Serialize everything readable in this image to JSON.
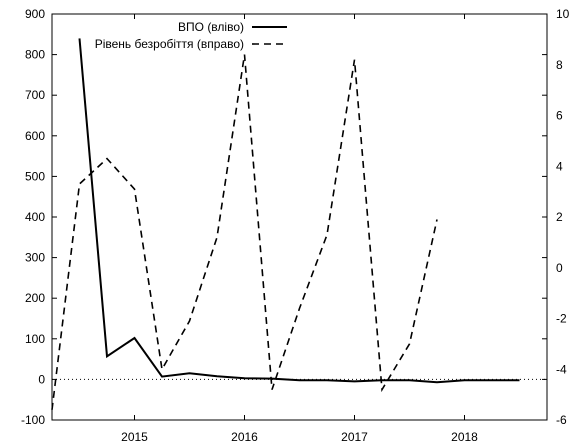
{
  "chart_data": {
    "type": "line",
    "title": "",
    "x_ticks": [
      "2015",
      "2016",
      "2017",
      "2018"
    ],
    "x_range": [
      2014.25,
      2018.75
    ],
    "y_left": {
      "range": [
        -100,
        900
      ],
      "ticks": [
        -100,
        0,
        100,
        200,
        300,
        400,
        500,
        600,
        700,
        800,
        900
      ]
    },
    "y_right": {
      "range": [
        -6,
        10
      ],
      "ticks": [
        -6,
        -4,
        -2,
        0,
        2,
        4,
        6,
        8,
        10
      ]
    },
    "zero_line": {
      "axis": "left",
      "value": 0,
      "style": "dotted"
    },
    "grid": false,
    "legend_position": "top-center",
    "series": [
      {
        "name": "ВПО (вліво)",
        "axis": "left",
        "style": "solid",
        "color": "#000000",
        "x": [
          2014.5,
          2014.75,
          2015.0,
          2015.25,
          2015.5,
          2015.75,
          2016.0,
          2016.25,
          2016.5,
          2016.75,
          2017.0,
          2017.25,
          2017.5,
          2017.75,
          2018.0,
          2018.25,
          2018.5
        ],
        "y": [
          840,
          57,
          102,
          7,
          15,
          8,
          3,
          2,
          -2,
          -2,
          -5,
          -2,
          -2,
          -7,
          -2,
          -2,
          -2
        ]
      },
      {
        "name": "Рівень безробіття (вправо)",
        "axis": "right",
        "style": "dashed",
        "color": "#000000",
        "x": [
          2014.25,
          2014.5,
          2014.75,
          2015.0,
          2015.25,
          2015.5,
          2015.75,
          2016.0,
          2016.25,
          2016.5,
          2016.75,
          2017.0,
          2017.25,
          2017.5,
          2017.75
        ],
        "y": [
          -5.6,
          3.3,
          4.3,
          3.1,
          -4.0,
          -2.1,
          1.2,
          8.4,
          -4.8,
          -1.6,
          1.3,
          8.2,
          -4.8,
          -3.0,
          1.9
        ]
      }
    ]
  }
}
